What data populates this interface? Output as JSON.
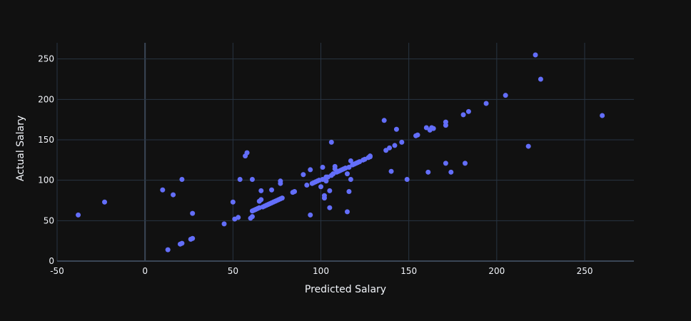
{
  "chart_data": {
    "type": "scatter",
    "xlabel": "Predicted Salary",
    "ylabel": "Actual Salary",
    "xlim": [
      -50,
      278
    ],
    "ylim": [
      0,
      270
    ],
    "xticks": [
      -50,
      0,
      50,
      100,
      150,
      200,
      250
    ],
    "yticks": [
      0,
      50,
      100,
      150,
      200,
      250
    ],
    "grid": true,
    "colors": {
      "background": "#111111",
      "grid": "#283442",
      "zero_line": "#3a4656",
      "marker": "#636efa",
      "text": "#f2f5fa"
    },
    "series": [
      {
        "marker": "circle",
        "points": [
          [
            -38,
            57
          ],
          [
            -23,
            73
          ],
          [
            10,
            88
          ],
          [
            16,
            82
          ],
          [
            21,
            101
          ],
          [
            27,
            59
          ],
          [
            13,
            14
          ],
          [
            20,
            21
          ],
          [
            21,
            22
          ],
          [
            26,
            27
          ],
          [
            27,
            28
          ],
          [
            45,
            46
          ],
          [
            50,
            73
          ],
          [
            51,
            52
          ],
          [
            53,
            54
          ],
          [
            54,
            101
          ],
          [
            57,
            130
          ],
          [
            58,
            134
          ],
          [
            60,
            53
          ],
          [
            61,
            55
          ],
          [
            61,
            101
          ],
          [
            61,
            62
          ],
          [
            62,
            63
          ],
          [
            63,
            64
          ],
          [
            64,
            65
          ],
          [
            65,
            66
          ],
          [
            65,
            74
          ],
          [
            66,
            87
          ],
          [
            66,
            76
          ],
          [
            67,
            67
          ],
          [
            68,
            68
          ],
          [
            69,
            69
          ],
          [
            70,
            70
          ],
          [
            71,
            71
          ],
          [
            72,
            88
          ],
          [
            72,
            72
          ],
          [
            73,
            73
          ],
          [
            74,
            74
          ],
          [
            75,
            75
          ],
          [
            76,
            76
          ],
          [
            77,
            99
          ],
          [
            77,
            96
          ],
          [
            77,
            77
          ],
          [
            78,
            78
          ],
          [
            84,
            85
          ],
          [
            85,
            86
          ],
          [
            90,
            107
          ],
          [
            92,
            94
          ],
          [
            94,
            113
          ],
          [
            94,
            57
          ],
          [
            95,
            96
          ],
          [
            96,
            97
          ],
          [
            97,
            98
          ],
          [
            98,
            99
          ],
          [
            99,
            100
          ],
          [
            100,
            92
          ],
          [
            101,
            101
          ],
          [
            101,
            116
          ],
          [
            102,
            78
          ],
          [
            102,
            81
          ],
          [
            103,
            104
          ],
          [
            103,
            99
          ],
          [
            104,
            104
          ],
          [
            105,
            87
          ],
          [
            105,
            66
          ],
          [
            106,
            106
          ],
          [
            106,
            147
          ],
          [
            107,
            108
          ],
          [
            108,
            114
          ],
          [
            108,
            117
          ],
          [
            109,
            110
          ],
          [
            110,
            111
          ],
          [
            111,
            112
          ],
          [
            112,
            113
          ],
          [
            113,
            114
          ],
          [
            114,
            115
          ],
          [
            115,
            61
          ],
          [
            115,
            108
          ],
          [
            116,
            116
          ],
          [
            116,
            86
          ],
          [
            117,
            124
          ],
          [
            117,
            101
          ],
          [
            118,
            119
          ],
          [
            119,
            120
          ],
          [
            120,
            121
          ],
          [
            121,
            122
          ],
          [
            122,
            123
          ],
          [
            124,
            125
          ],
          [
            125,
            126
          ],
          [
            127,
            128
          ],
          [
            128,
            129
          ],
          [
            128,
            130
          ],
          [
            136,
            174
          ],
          [
            137,
            137
          ],
          [
            139,
            140
          ],
          [
            140,
            111
          ],
          [
            142,
            143
          ],
          [
            143,
            163
          ],
          [
            146,
            147
          ],
          [
            149,
            101
          ],
          [
            154,
            155
          ],
          [
            155,
            156
          ],
          [
            160,
            165
          ],
          [
            161,
            110
          ],
          [
            162,
            162
          ],
          [
            163,
            165
          ],
          [
            164,
            164
          ],
          [
            171,
            121
          ],
          [
            171,
            168
          ],
          [
            171,
            172
          ],
          [
            174,
            110
          ],
          [
            181,
            181
          ],
          [
            182,
            121
          ],
          [
            184,
            185
          ],
          [
            194,
            195
          ],
          [
            205,
            205
          ],
          [
            218,
            142
          ],
          [
            222,
            255
          ],
          [
            225,
            225
          ],
          [
            260,
            180
          ]
        ]
      }
    ]
  }
}
